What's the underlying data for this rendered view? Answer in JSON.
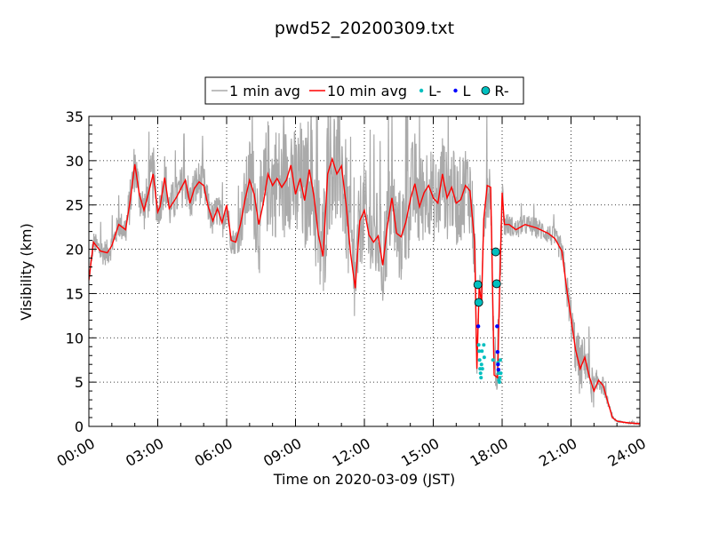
{
  "chart_data": {
    "type": "line",
    "title": "pwd52_20200309.txt",
    "xlabel": "Time on 2020-03-09 (JST)",
    "ylabel": "Visibility (km)",
    "xlim_hours": [
      0,
      24
    ],
    "ylim": [
      0,
      35
    ],
    "x_ticks": [
      {
        "h": 0,
        "label": "00:00"
      },
      {
        "h": 3,
        "label": "03:00"
      },
      {
        "h": 6,
        "label": "06:00"
      },
      {
        "h": 9,
        "label": "09:00"
      },
      {
        "h": 12,
        "label": "12:00"
      },
      {
        "h": 15,
        "label": "15:00"
      },
      {
        "h": 18,
        "label": "18:00"
      },
      {
        "h": 21,
        "label": "21:00"
      },
      {
        "h": 24,
        "label": "24:00"
      }
    ],
    "y_ticks": [
      {
        "v": 0,
        "label": "0"
      },
      {
        "v": 5,
        "label": "5"
      },
      {
        "v": 10,
        "label": "10"
      },
      {
        "v": 15,
        "label": "15"
      },
      {
        "v": 20,
        "label": "20"
      },
      {
        "v": 25,
        "label": "25"
      },
      {
        "v": 30,
        "label": "30"
      },
      {
        "v": 35,
        "label": "35"
      }
    ],
    "grid": true,
    "legend_position": "top-center",
    "legend": [
      {
        "label": "1 min avg",
        "kind": "line",
        "color": "#aaaaaa"
      },
      {
        "label": "10 min avg",
        "kind": "line",
        "color": "#ff0000"
      },
      {
        "label": "L-",
        "kind": "dot-small",
        "color": "#00bfbf"
      },
      {
        "label": "L",
        "kind": "dot-small",
        "color": "#0000ff"
      },
      {
        "label": "R-",
        "kind": "dot-large",
        "color": "#00bfbf"
      }
    ],
    "series": [
      {
        "name": "10 min avg",
        "color": "#ff0000",
        "x": [
          0.0,
          0.2,
          0.5,
          0.8,
          1.0,
          1.3,
          1.6,
          1.8,
          2.0,
          2.2,
          2.4,
          2.6,
          2.8,
          3.0,
          3.1,
          3.3,
          3.5,
          3.8,
          4.0,
          4.2,
          4.4,
          4.6,
          4.8,
          5.0,
          5.2,
          5.4,
          5.6,
          5.8,
          6.0,
          6.2,
          6.4,
          6.6,
          6.8,
          7.0,
          7.2,
          7.4,
          7.6,
          7.8,
          8.0,
          8.2,
          8.4,
          8.6,
          8.8,
          9.0,
          9.2,
          9.4,
          9.6,
          9.8,
          10.0,
          10.2,
          10.4,
          10.6,
          10.8,
          11.0,
          11.2,
          11.4,
          11.6,
          11.8,
          12.0,
          12.2,
          12.4,
          12.6,
          12.8,
          13.0,
          13.2,
          13.4,
          13.6,
          13.8,
          14.0,
          14.2,
          14.4,
          14.6,
          14.8,
          15.0,
          15.2,
          15.4,
          15.6,
          15.8,
          16.0,
          16.2,
          16.4,
          16.6,
          16.8,
          16.9,
          17.0,
          17.1,
          17.2,
          17.35,
          17.5,
          17.65,
          17.8,
          17.9,
          18.0,
          18.1,
          18.3,
          18.6,
          19.0,
          19.5,
          20.0,
          20.3,
          20.6,
          20.8,
          21.0,
          21.2,
          21.4,
          21.6,
          21.8,
          22.0,
          22.2,
          22.4,
          22.6,
          22.8,
          23.0,
          23.2,
          23.5,
          24.0
        ],
        "y": [
          16.5,
          20.8,
          19.8,
          19.6,
          20.4,
          22.8,
          22.2,
          25.5,
          29.6,
          26.2,
          24.4,
          26.4,
          28.5,
          24.2,
          24.8,
          28.1,
          24.6,
          25.8,
          26.8,
          27.8,
          25.2,
          26.9,
          27.6,
          27.2,
          24.8,
          23.2,
          24.6,
          23.0,
          25.0,
          21.0,
          20.8,
          22.8,
          25.6,
          27.8,
          26.2,
          22.8,
          25.2,
          28.5,
          27.2,
          28.0,
          27.0,
          27.8,
          29.5,
          26.2,
          28.0,
          25.5,
          29.0,
          26.0,
          21.6,
          19.2,
          28.5,
          30.2,
          28.5,
          29.4,
          25.2,
          19.5,
          15.6,
          23.2,
          24.4,
          21.6,
          20.8,
          21.5,
          18.2,
          22.6,
          25.8,
          21.8,
          21.4,
          23.0,
          25.6,
          27.4,
          24.8,
          26.4,
          27.2,
          25.8,
          25.2,
          28.5,
          25.8,
          27.0,
          25.2,
          25.6,
          27.2,
          26.6,
          20.8,
          6.5,
          16.0,
          13.8,
          23.4,
          27.2,
          27.0,
          5.8,
          5.5,
          16.6,
          26.4,
          22.8,
          22.8,
          22.2,
          22.8,
          22.4,
          21.8,
          21.2,
          19.8,
          15.8,
          12.2,
          8.6,
          6.5,
          7.8,
          5.6,
          4.0,
          5.2,
          4.6,
          2.8,
          1.0,
          0.6,
          0.5,
          0.4,
          0.3
        ]
      },
      {
        "name": "1 min avg",
        "color": "#aaaaaa",
        "x": [
          0.0,
          0.2,
          0.5,
          0.8,
          1.0,
          1.3,
          1.6,
          1.8,
          2.0,
          2.2,
          2.4,
          2.6,
          2.8,
          3.0,
          3.1,
          3.3,
          3.5,
          3.8,
          4.0,
          4.2,
          4.4,
          4.6,
          4.8,
          5.0,
          5.2,
          5.4,
          5.6,
          5.8,
          6.0,
          6.2,
          6.4,
          6.6,
          6.8,
          7.0,
          7.2,
          7.4,
          7.6,
          7.8,
          8.0,
          8.2,
          8.4,
          8.6,
          8.8,
          9.0,
          9.2,
          9.4,
          9.6,
          9.8,
          10.0,
          10.2,
          10.4,
          10.6,
          10.8,
          11.0,
          11.2,
          11.4,
          11.6,
          11.8,
          12.0,
          12.2,
          12.4,
          12.6,
          12.8,
          13.0,
          13.2,
          13.4,
          13.6,
          13.8,
          14.0,
          14.2,
          14.4,
          14.6,
          14.8,
          15.0,
          15.2,
          15.4,
          15.6,
          15.8,
          16.0,
          16.2,
          16.4,
          16.6,
          16.8,
          16.9,
          17.0,
          17.1,
          17.2,
          17.35,
          17.5,
          17.65,
          17.8,
          17.9,
          18.0,
          18.1,
          18.3,
          18.6,
          19.0,
          19.5,
          20.0,
          20.3,
          20.6,
          20.8,
          21.0,
          21.2,
          21.4,
          21.6,
          21.8,
          22.0,
          22.2,
          22.4,
          22.6,
          22.8,
          23.0,
          23.2,
          23.5,
          24.0
        ],
        "y": [
          16.5,
          20.8,
          19.8,
          19.6,
          20.4,
          22.8,
          22.2,
          25.5,
          29.6,
          26.2,
          24.4,
          26.4,
          28.5,
          24.2,
          24.8,
          28.1,
          24.6,
          25.8,
          26.8,
          27.8,
          25.2,
          26.9,
          27.6,
          27.2,
          24.8,
          23.2,
          24.6,
          23.0,
          25.0,
          21.0,
          20.8,
          22.8,
          25.6,
          27.8,
          26.2,
          22.8,
          25.2,
          28.5,
          27.2,
          28.0,
          27.0,
          27.8,
          29.5,
          26.2,
          28.0,
          25.5,
          29.0,
          26.0,
          21.6,
          19.2,
          28.5,
          30.2,
          28.5,
          29.4,
          25.2,
          19.5,
          15.6,
          23.2,
          24.4,
          21.6,
          20.8,
          21.5,
          18.2,
          22.6,
          25.8,
          21.8,
          21.4,
          23.0,
          25.6,
          27.4,
          24.8,
          26.4,
          27.2,
          25.8,
          25.2,
          28.5,
          25.8,
          27.0,
          25.2,
          25.6,
          27.2,
          26.6,
          20.8,
          6.5,
          16.0,
          13.8,
          23.4,
          27.2,
          27.0,
          5.8,
          5.5,
          16.6,
          26.4,
          22.8,
          22.8,
          22.2,
          22.8,
          22.4,
          21.8,
          21.2,
          19.8,
          15.8,
          12.2,
          8.6,
          6.5,
          7.8,
          5.6,
          4.0,
          5.2,
          4.6,
          2.8,
          1.0,
          0.6,
          0.5,
          0.4,
          0.3
        ],
        "noise_amplitude": [
          1.0,
          1.2,
          1.5,
          1.5,
          1.5,
          1.5,
          2.0,
          2.5,
          3.0,
          2.5,
          2.5,
          3.0,
          3.5,
          2.0,
          2.0,
          3.0,
          2.5,
          2.5,
          2.5,
          2.5,
          2.5,
          2.5,
          2.5,
          2.5,
          2.0,
          2.0,
          2.0,
          2.0,
          2.0,
          1.5,
          1.5,
          3.0,
          4.0,
          5.0,
          5.5,
          6.0,
          6.5,
          6.5,
          6.5,
          6.5,
          6.5,
          6.5,
          7.0,
          7.0,
          7.0,
          7.0,
          7.0,
          7.0,
          7.5,
          7.5,
          7.5,
          7.5,
          7.5,
          7.5,
          7.0,
          6.0,
          5.0,
          5.5,
          5.5,
          5.5,
          5.5,
          5.5,
          5.5,
          5.5,
          5.5,
          5.5,
          5.5,
          6.0,
          6.0,
          6.0,
          5.5,
          5.5,
          5.5,
          5.0,
          5.0,
          5.0,
          5.0,
          5.0,
          5.0,
          5.0,
          5.0,
          5.0,
          5.0,
          2.0,
          2.0,
          2.0,
          3.0,
          4.0,
          3.0,
          2.0,
          2.0,
          3.0,
          2.5,
          1.5,
          1.2,
          1.2,
          1.2,
          1.2,
          1.2,
          1.2,
          1.5,
          2.0,
          2.5,
          3.0,
          3.5,
          2.5,
          2.5,
          2.0,
          1.5,
          1.0,
          0.5,
          0.2,
          0.1,
          0.1,
          0.1,
          0.1
        ]
      }
    ],
    "markers": {
      "L-": [
        [
          16.98,
          9.2
        ],
        [
          17.0,
          8.5
        ],
        [
          17.02,
          7.5
        ],
        [
          17.04,
          6.5
        ],
        [
          17.06,
          6.0
        ],
        [
          17.08,
          5.5
        ],
        [
          17.1,
          7.0
        ],
        [
          17.12,
          8.5
        ],
        [
          17.14,
          6.5
        ],
        [
          17.2,
          9.2
        ],
        [
          17.22,
          7.8
        ],
        [
          17.6,
          7.5
        ],
        [
          17.82,
          7.2
        ],
        [
          17.84,
          6.0
        ],
        [
          17.86,
          5.2
        ],
        [
          17.88,
          5.0
        ],
        [
          17.9,
          5.5
        ],
        [
          17.92,
          7.5
        ],
        [
          17.94,
          6.0
        ]
      ],
      "L": [
        [
          16.96,
          11.3
        ],
        [
          17.78,
          11.3
        ],
        [
          17.8,
          8.4
        ],
        [
          17.82,
          7.0
        ],
        [
          17.84,
          6.4
        ]
      ],
      "R-": [
        [
          16.94,
          16.0
        ],
        [
          16.98,
          14.0
        ],
        [
          17.72,
          19.7
        ],
        [
          17.76,
          16.1
        ]
      ]
    }
  }
}
